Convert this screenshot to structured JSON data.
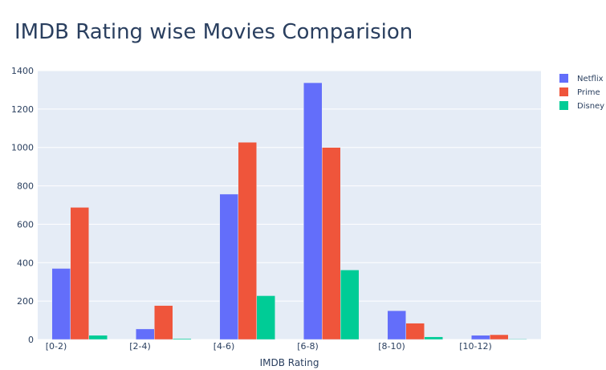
{
  "chart_data": {
    "type": "bar",
    "title": "IMDB Rating wise Movies Comparision",
    "xlabel": "IMDB Rating",
    "ylabel": "",
    "categories": [
      "[0-2)",
      "[2-4)",
      "[4-6)",
      "[6-8)",
      "[8-10)",
      "[10-12)"
    ],
    "ylim": [
      0,
      1400
    ],
    "yticks": [
      0,
      200,
      400,
      600,
      800,
      1000,
      1200,
      1400
    ],
    "grid": true,
    "legend_position": "top-right",
    "series": [
      {
        "name": "Netflix",
        "color": "#636efa",
        "values": [
          370,
          55,
          757,
          1337,
          150,
          22
        ]
      },
      {
        "name": "Prime",
        "color": "#ef553b",
        "values": [
          688,
          177,
          1027,
          1000,
          85,
          25
        ]
      },
      {
        "name": "Disney",
        "color": "#00cc96",
        "values": [
          22,
          5,
          228,
          362,
          14,
          3
        ]
      }
    ]
  }
}
